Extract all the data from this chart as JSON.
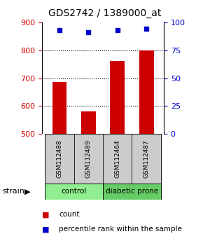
{
  "title": "GDS2742 / 1389000_at",
  "samples": [
    "GSM112488",
    "GSM112489",
    "GSM112464",
    "GSM112487"
  ],
  "counts": [
    685,
    582,
    762,
    800
  ],
  "percentiles": [
    93,
    91,
    93,
    94
  ],
  "ylim_left": [
    500,
    900
  ],
  "ylim_right": [
    0,
    100
  ],
  "yticks_left": [
    500,
    600,
    700,
    800,
    900
  ],
  "yticks_right": [
    0,
    25,
    50,
    75,
    100
  ],
  "groups": [
    {
      "label": "control",
      "samples": [
        0,
        1
      ],
      "color": "#90EE90"
    },
    {
      "label": "diabetic prone",
      "samples": [
        2,
        3
      ],
      "color": "#66CC66"
    }
  ],
  "bar_color": "#CC0000",
  "dot_color": "#0000CC",
  "bar_width": 0.5,
  "left_tick_color": "#CC0000",
  "right_tick_color": "#0000CC",
  "group_label": "strain",
  "legend_bar_label": "count",
  "legend_dot_label": "percentile rank within the sample",
  "grid_color": "#000000",
  "sample_box_color": "#CCCCCC",
  "bg_color": "#FFFFFF"
}
